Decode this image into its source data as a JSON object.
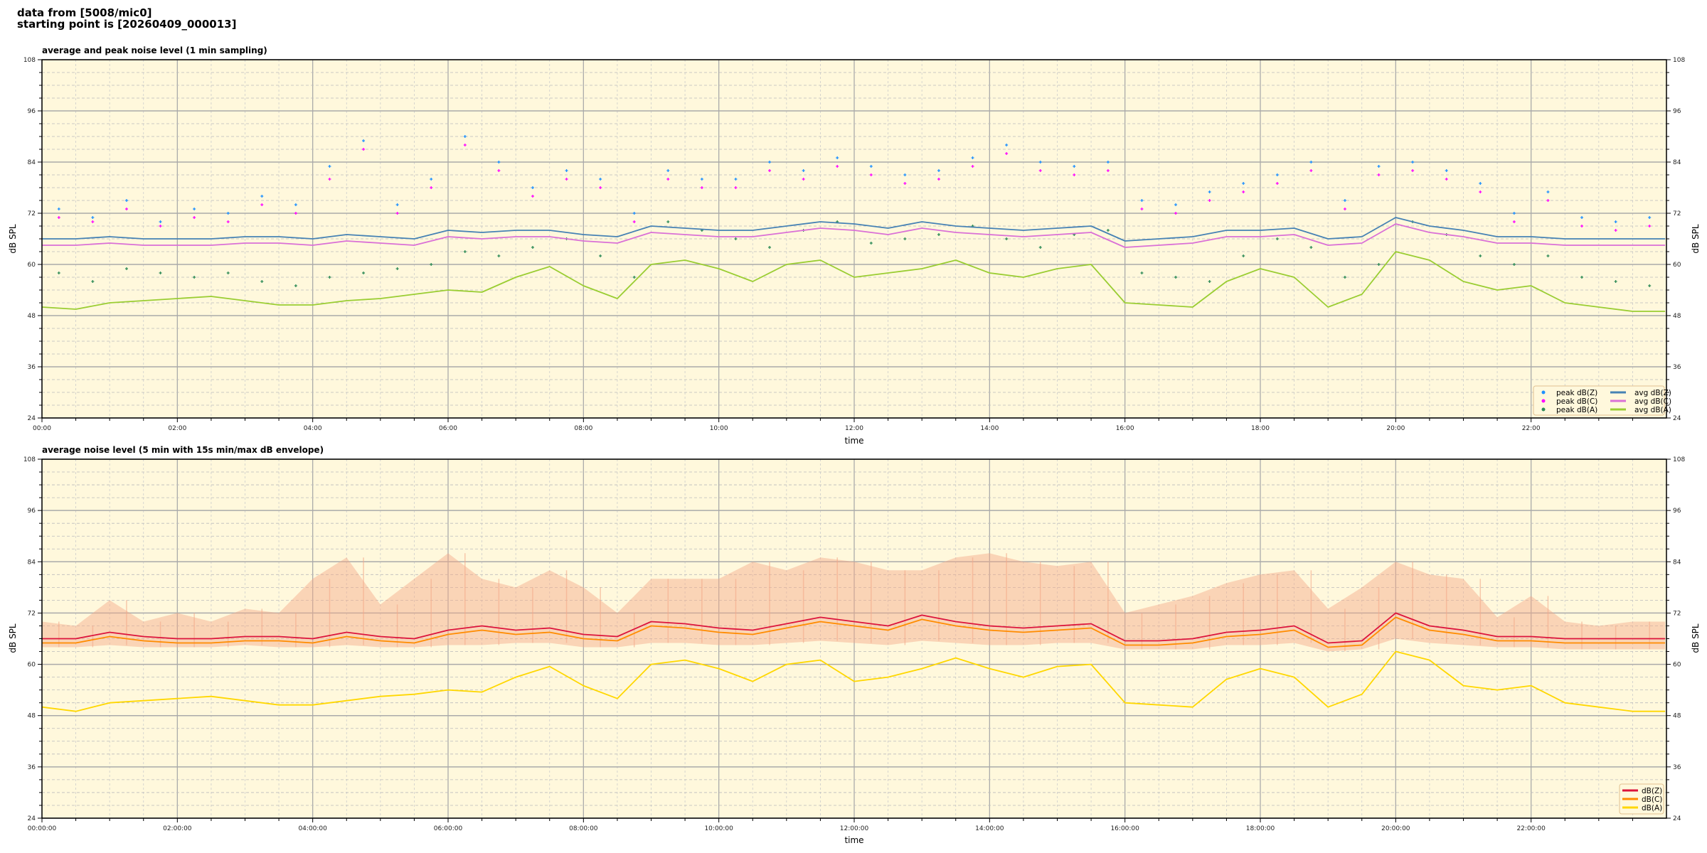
{
  "header": {
    "line1": "data from [5008/mic0]",
    "line2": "starting point is [20260409_000013]"
  },
  "colors": {
    "background": "#fff8dc",
    "avg_z": "#4682b4",
    "avg_c": "#da70d6",
    "avg_a": "#9acd32",
    "peak_z": "#1e90ff",
    "peak_c": "#ff00ff",
    "peak_a": "#2e8b57",
    "z": "#dc143c",
    "c": "#ff8c00",
    "a": "#ffd700",
    "envelope": "#f4a988"
  },
  "chart_data": [
    {
      "type": "line",
      "title": "average and peak noise level (1 min sampling)",
      "xlabel": "time",
      "ylabel": "dB SPL",
      "ylabel_right": "dB SPL",
      "ylim": [
        24,
        108
      ],
      "xlim_hours": [
        0,
        24
      ],
      "yticks": [
        "24",
        "36",
        "48",
        "60",
        "72",
        "84",
        "96",
        "108"
      ],
      "xticks": [
        "00:00",
        "02:00",
        "04:00",
        "06:00",
        "08:00",
        "10:00",
        "12:00",
        "14:00",
        "16:00",
        "18:00",
        "20:00",
        "22:00"
      ],
      "grid": true,
      "legend_placement": "lower-right",
      "x_hours": [
        0,
        0.5,
        1,
        1.5,
        2,
        2.5,
        3,
        3.5,
        4,
        4.5,
        5,
        5.5,
        6,
        6.5,
        7,
        7.5,
        8,
        8.5,
        9,
        9.5,
        10,
        10.5,
        11,
        11.5,
        12,
        12.5,
        13,
        13.5,
        14,
        14.5,
        15,
        15.5,
        16,
        16.5,
        17,
        17.5,
        18,
        18.5,
        19,
        19.5,
        20,
        20.5,
        21,
        21.5,
        22,
        22.5,
        23,
        23.5
      ],
      "series": [
        {
          "name": "avg dB(Z)",
          "kind": "line",
          "color_key": "avg_z",
          "values": [
            66,
            66,
            66.5,
            66,
            66,
            66,
            66.5,
            66.5,
            66,
            67,
            66.5,
            66,
            68,
            67.5,
            68,
            68,
            67,
            66.5,
            69,
            68.5,
            68,
            68,
            69,
            70,
            69.5,
            68.5,
            70,
            69,
            68.5,
            68,
            68.5,
            69,
            65.5,
            66,
            66.5,
            68,
            68,
            68.5,
            66,
            66.5,
            71,
            69,
            68,
            66.5,
            66.5,
            66,
            66,
            66
          ]
        },
        {
          "name": "avg dB(C)",
          "kind": "line",
          "color_key": "avg_c",
          "values": [
            64.5,
            64.5,
            65,
            64.5,
            64.5,
            64.5,
            65,
            65,
            64.5,
            65.5,
            65,
            64.5,
            66.5,
            66,
            66.5,
            66.5,
            65.5,
            65,
            67.5,
            67,
            66.5,
            66.5,
            67.5,
            68.5,
            68,
            67,
            68.5,
            67.5,
            67,
            66.5,
            67,
            67.5,
            64,
            64.5,
            65,
            66.5,
            66.5,
            67,
            64.5,
            65,
            69.5,
            67.5,
            66.5,
            65,
            65,
            64.5,
            64.5,
            64.5
          ]
        },
        {
          "name": "avg dB(A)",
          "kind": "line",
          "color_key": "avg_a",
          "values": [
            50,
            49.5,
            51,
            51.5,
            52,
            52.5,
            51.5,
            50.5,
            50.5,
            51.5,
            52,
            53,
            54,
            53.5,
            57,
            59.5,
            55,
            52,
            60,
            61,
            59,
            56,
            60,
            61,
            57,
            58,
            59,
            61,
            58,
            57,
            59,
            60,
            51,
            50.5,
            50,
            56,
            59,
            57,
            50,
            53,
            63,
            61,
            56,
            54,
            55,
            51,
            50,
            49
          ]
        },
        {
          "name": "peak dB(Z)",
          "kind": "scatter",
          "color_key": "peak_z",
          "values": [
            73,
            71,
            75,
            70,
            73,
            72,
            76,
            74,
            83,
            89,
            74,
            80,
            90,
            84,
            78,
            82,
            80,
            72,
            82,
            80,
            80,
            84,
            82,
            85,
            83,
            81,
            82,
            85,
            88,
            84,
            83,
            84,
            75,
            74,
            77,
            79,
            81,
            84,
            75,
            83,
            84,
            82,
            79,
            72,
            77,
            71,
            70,
            71
          ]
        },
        {
          "name": "peak dB(C)",
          "kind": "scatter",
          "color_key": "peak_c",
          "values": [
            71,
            70,
            73,
            69,
            71,
            70,
            74,
            72,
            80,
            87,
            72,
            78,
            88,
            82,
            76,
            80,
            78,
            70,
            80,
            78,
            78,
            82,
            80,
            83,
            81,
            79,
            80,
            83,
            86,
            82,
            81,
            82,
            73,
            72,
            75,
            77,
            79,
            82,
            73,
            81,
            82,
            80,
            77,
            70,
            75,
            69,
            68,
            69
          ]
        },
        {
          "name": "peak dB(A)",
          "kind": "scatter",
          "color_key": "peak_a",
          "values": [
            58,
            56,
            59,
            58,
            57,
            58,
            56,
            55,
            57,
            58,
            59,
            60,
            63,
            62,
            64,
            66,
            62,
            57,
            70,
            68,
            66,
            64,
            68,
            70,
            65,
            66,
            67,
            69,
            66,
            64,
            67,
            68,
            58,
            57,
            56,
            62,
            66,
            64,
            57,
            60,
            70,
            67,
            62,
            60,
            62,
            57,
            56,
            55
          ]
        }
      ],
      "legend": [
        "peak dB(Z)",
        "peak dB(C)",
        "peak dB(A)",
        "avg dB(Z)",
        "avg dB(C)",
        "avg dB(A)"
      ]
    },
    {
      "type": "line",
      "title": "average noise level (5 min with 15s min/max dB envelope)",
      "xlabel": "time",
      "ylabel": "dB SPL",
      "ylabel_right": "dB SPL",
      "ylim": [
        24,
        108
      ],
      "xlim_hours": [
        0,
        24
      ],
      "yticks": [
        "24",
        "36",
        "48",
        "60",
        "72",
        "84",
        "96",
        "108"
      ],
      "xticks": [
        "00:00:00",
        "02:00:00",
        "04:00:00",
        "06:00:00",
        "08:00:00",
        "10:00:00",
        "12:00:00",
        "14:00:00",
        "16:00:00",
        "18:00:00",
        "20:00:00",
        "22:00:00"
      ],
      "grid": true,
      "legend_placement": "lower-right",
      "x_hours": [
        0,
        0.5,
        1,
        1.5,
        2,
        2.5,
        3,
        3.5,
        4,
        4.5,
        5,
        5.5,
        6,
        6.5,
        7,
        7.5,
        8,
        8.5,
        9,
        9.5,
        10,
        10.5,
        11,
        11.5,
        12,
        12.5,
        13,
        13.5,
        14,
        14.5,
        15,
        15.5,
        16,
        16.5,
        17,
        17.5,
        18,
        18.5,
        19,
        19.5,
        20,
        20.5,
        21,
        21.5,
        22,
        22.5,
        23,
        23.5
      ],
      "envelope_max": [
        70,
        69,
        75,
        70,
        72,
        70,
        73,
        72,
        80,
        85,
        74,
        80,
        86,
        80,
        78,
        82,
        78,
        72,
        80,
        80,
        80,
        84,
        82,
        85,
        84,
        82,
        82,
        85,
        86,
        84,
        83,
        84,
        72,
        74,
        76,
        79,
        81,
        82,
        73,
        78,
        84,
        81,
        80,
        71,
        76,
        70,
        69,
        70
      ],
      "envelope_min": [
        64,
        64,
        64.5,
        64,
        64,
        64,
        64.5,
        64,
        64,
        64.5,
        64,
        64,
        64.5,
        64.5,
        65,
        65,
        64,
        64,
        65,
        65,
        64.5,
        64.5,
        65,
        65.5,
        65,
        64.5,
        65.5,
        65,
        64.5,
        64.5,
        65,
        65,
        63.5,
        63.5,
        63.5,
        64.5,
        64.5,
        65,
        63,
        63.5,
        66,
        65,
        64.5,
        64,
        64,
        63.5,
        63.5,
        63.5
      ],
      "series": [
        {
          "name": "dB(Z)",
          "kind": "line",
          "color_key": "z",
          "values": [
            66,
            66,
            67.5,
            66.5,
            66,
            66,
            66.5,
            66.5,
            66,
            67.5,
            66.5,
            66,
            68,
            69,
            68,
            68.5,
            67,
            66.5,
            70,
            69.5,
            68.5,
            68,
            69.5,
            71,
            70,
            69,
            71.5,
            70,
            69,
            68.5,
            69,
            69.5,
            65.5,
            65.5,
            66,
            67.5,
            68,
            69,
            65,
            65.5,
            72,
            69,
            68,
            66.5,
            66.5,
            66,
            66,
            66
          ]
        },
        {
          "name": "dB(C)",
          "kind": "line",
          "color_key": "c",
          "values": [
            65,
            65,
            66.5,
            65.5,
            65,
            65,
            65.5,
            65.5,
            65,
            66.5,
            65.5,
            65,
            67,
            68,
            67,
            67.5,
            66,
            65.5,
            69,
            68.5,
            67.5,
            67,
            68.5,
            70,
            69,
            68,
            70.5,
            69,
            68,
            67.5,
            68,
            68.5,
            64.5,
            64.5,
            65,
            66.5,
            67,
            68,
            64,
            64.5,
            71,
            68,
            67,
            65.5,
            65.5,
            65,
            65,
            65
          ]
        },
        {
          "name": "dB(A)",
          "kind": "line",
          "color_key": "a",
          "values": [
            50,
            49,
            51,
            51.5,
            52,
            52.5,
            51.5,
            50.5,
            50.5,
            51.5,
            52.5,
            53,
            54,
            53.5,
            57,
            59.5,
            55,
            52,
            60,
            61,
            59,
            56,
            60,
            61,
            56,
            57,
            59,
            61.5,
            59,
            57,
            59.5,
            60,
            51,
            50.5,
            50,
            56.5,
            59,
            57,
            50,
            53,
            63,
            61,
            55,
            54,
            55,
            51,
            50,
            49
          ]
        }
      ],
      "legend": [
        "dB(Z)",
        "dB(C)",
        "dB(A)"
      ]
    }
  ]
}
